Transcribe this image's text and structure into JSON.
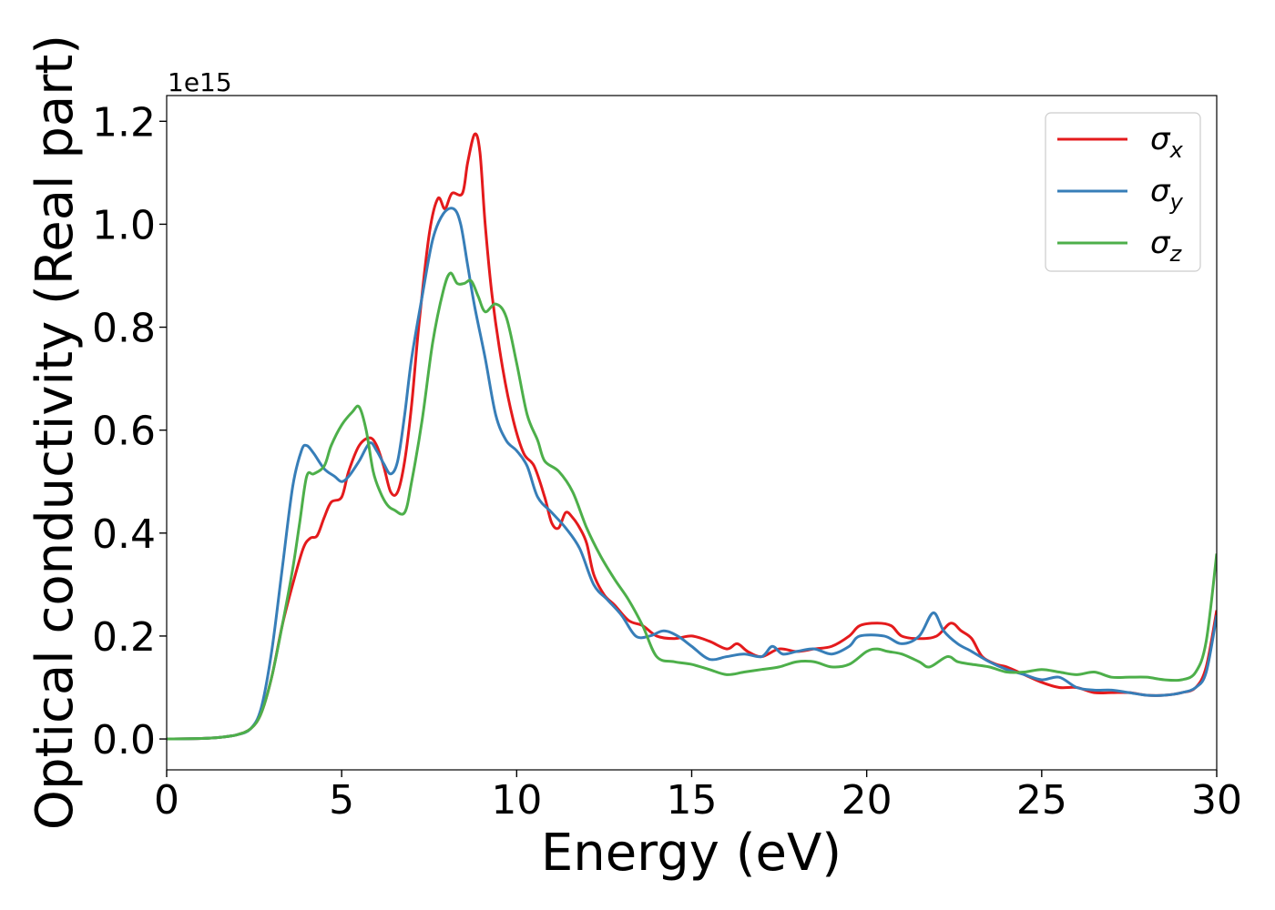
{
  "chart_data": {
    "type": "line",
    "xlabel": "Energy (eV)",
    "ylabel": "Optical conductivity (Real part)",
    "y_offset_label": "1e15",
    "xlim": [
      0,
      30
    ],
    "ylim": [
      -0.06,
      1.25
    ],
    "x_ticks": [
      0,
      5,
      10,
      15,
      20,
      25,
      30
    ],
    "x_tick_labels": [
      "0",
      "5",
      "10",
      "15",
      "20",
      "25",
      "30"
    ],
    "y_ticks": [
      0.0,
      0.2,
      0.4,
      0.6,
      0.8,
      1.0,
      1.2
    ],
    "y_tick_labels": [
      "0.0",
      "0.2",
      "0.4",
      "0.6",
      "0.8",
      "1.0",
      "1.2"
    ],
    "grid": false,
    "legend_position": "top-right",
    "series": [
      {
        "name": "σ",
        "subscript": "x",
        "color": "#e41a1c",
        "points": [
          [
            0,
            0
          ],
          [
            1,
            0.001
          ],
          [
            1.5,
            0.003
          ],
          [
            2,
            0.008
          ],
          [
            2.4,
            0.02
          ],
          [
            2.7,
            0.05
          ],
          [
            3,
            0.12
          ],
          [
            3.3,
            0.22
          ],
          [
            3.6,
            0.3
          ],
          [
            3.9,
            0.37
          ],
          [
            4.1,
            0.39
          ],
          [
            4.3,
            0.395
          ],
          [
            4.5,
            0.43
          ],
          [
            4.7,
            0.46
          ],
          [
            5,
            0.47
          ],
          [
            5.2,
            0.52
          ],
          [
            5.5,
            0.57
          ],
          [
            5.8,
            0.585
          ],
          [
            6,
            0.57
          ],
          [
            6.2,
            0.53
          ],
          [
            6.4,
            0.48
          ],
          [
            6.6,
            0.48
          ],
          [
            6.8,
            0.54
          ],
          [
            7,
            0.65
          ],
          [
            7.2,
            0.8
          ],
          [
            7.5,
            0.98
          ],
          [
            7.75,
            1.05
          ],
          [
            7.95,
            1.03
          ],
          [
            8.15,
            1.06
          ],
          [
            8.45,
            1.06
          ],
          [
            8.6,
            1.12
          ],
          [
            8.8,
            1.175
          ],
          [
            8.95,
            1.14
          ],
          [
            9.1,
            1.0
          ],
          [
            9.3,
            0.86
          ],
          [
            9.6,
            0.72
          ],
          [
            9.9,
            0.62
          ],
          [
            10.2,
            0.555
          ],
          [
            10.5,
            0.53
          ],
          [
            10.8,
            0.47
          ],
          [
            11,
            0.42
          ],
          [
            11.2,
            0.41
          ],
          [
            11.4,
            0.44
          ],
          [
            11.6,
            0.43
          ],
          [
            11.8,
            0.41
          ],
          [
            12,
            0.38
          ],
          [
            12.2,
            0.32
          ],
          [
            12.5,
            0.28
          ],
          [
            12.8,
            0.26
          ],
          [
            13.2,
            0.23
          ],
          [
            13.6,
            0.22
          ],
          [
            14,
            0.2
          ],
          [
            14.5,
            0.195
          ],
          [
            15,
            0.2
          ],
          [
            15.5,
            0.19
          ],
          [
            16,
            0.175
          ],
          [
            16.3,
            0.185
          ],
          [
            16.6,
            0.17
          ],
          [
            17,
            0.16
          ],
          [
            17.5,
            0.175
          ],
          [
            18,
            0.17
          ],
          [
            18.5,
            0.175
          ],
          [
            19,
            0.18
          ],
          [
            19.5,
            0.2
          ],
          [
            19.8,
            0.22
          ],
          [
            20.3,
            0.225
          ],
          [
            20.7,
            0.22
          ],
          [
            21,
            0.2
          ],
          [
            21.5,
            0.195
          ],
          [
            22,
            0.2
          ],
          [
            22.4,
            0.225
          ],
          [
            22.7,
            0.21
          ],
          [
            23,
            0.195
          ],
          [
            23.3,
            0.16
          ],
          [
            23.7,
            0.145
          ],
          [
            24,
            0.14
          ],
          [
            24.5,
            0.125
          ],
          [
            25,
            0.11
          ],
          [
            25.5,
            0.1
          ],
          [
            26,
            0.1
          ],
          [
            26.5,
            0.09
          ],
          [
            27,
            0.09
          ],
          [
            27.5,
            0.09
          ],
          [
            28,
            0.085
          ],
          [
            28.5,
            0.085
          ],
          [
            29,
            0.09
          ],
          [
            29.4,
            0.1
          ],
          [
            29.7,
            0.14
          ],
          [
            30,
            0.25
          ]
        ]
      },
      {
        "name": "σ",
        "subscript": "y",
        "color": "#377eb8",
        "points": [
          [
            0,
            0
          ],
          [
            1,
            0.001
          ],
          [
            1.5,
            0.003
          ],
          [
            2,
            0.008
          ],
          [
            2.4,
            0.02
          ],
          [
            2.7,
            0.06
          ],
          [
            3,
            0.17
          ],
          [
            3.3,
            0.33
          ],
          [
            3.6,
            0.49
          ],
          [
            3.85,
            0.56
          ],
          [
            4,
            0.57
          ],
          [
            4.2,
            0.555
          ],
          [
            4.5,
            0.525
          ],
          [
            4.8,
            0.51
          ],
          [
            5,
            0.5
          ],
          [
            5.2,
            0.51
          ],
          [
            5.5,
            0.54
          ],
          [
            5.8,
            0.575
          ],
          [
            6,
            0.56
          ],
          [
            6.2,
            0.535
          ],
          [
            6.4,
            0.515
          ],
          [
            6.6,
            0.54
          ],
          [
            6.8,
            0.63
          ],
          [
            7,
            0.74
          ],
          [
            7.3,
            0.86
          ],
          [
            7.6,
            0.97
          ],
          [
            7.9,
            1.02
          ],
          [
            8.2,
            1.03
          ],
          [
            8.4,
            1.0
          ],
          [
            8.6,
            0.92
          ],
          [
            8.8,
            0.84
          ],
          [
            9.1,
            0.74
          ],
          [
            9.4,
            0.63
          ],
          [
            9.7,
            0.58
          ],
          [
            10,
            0.56
          ],
          [
            10.3,
            0.53
          ],
          [
            10.6,
            0.47
          ],
          [
            11,
            0.44
          ],
          [
            11.4,
            0.41
          ],
          [
            11.8,
            0.37
          ],
          [
            12.2,
            0.3
          ],
          [
            12.6,
            0.27
          ],
          [
            13,
            0.24
          ],
          [
            13.4,
            0.2
          ],
          [
            13.8,
            0.2
          ],
          [
            14.2,
            0.21
          ],
          [
            14.6,
            0.2
          ],
          [
            15,
            0.18
          ],
          [
            15.5,
            0.155
          ],
          [
            16,
            0.16
          ],
          [
            16.5,
            0.165
          ],
          [
            17,
            0.16
          ],
          [
            17.3,
            0.18
          ],
          [
            17.6,
            0.165
          ],
          [
            18,
            0.17
          ],
          [
            18.5,
            0.175
          ],
          [
            19,
            0.165
          ],
          [
            19.5,
            0.18
          ],
          [
            19.8,
            0.2
          ],
          [
            20.5,
            0.2
          ],
          [
            21,
            0.185
          ],
          [
            21.5,
            0.2
          ],
          [
            21.9,
            0.245
          ],
          [
            22.2,
            0.21
          ],
          [
            22.6,
            0.185
          ],
          [
            23,
            0.17
          ],
          [
            23.5,
            0.15
          ],
          [
            24,
            0.135
          ],
          [
            24.5,
            0.125
          ],
          [
            25,
            0.115
          ],
          [
            25.5,
            0.12
          ],
          [
            26,
            0.1
          ],
          [
            26.5,
            0.095
          ],
          [
            27,
            0.095
          ],
          [
            27.5,
            0.09
          ],
          [
            28,
            0.085
          ],
          [
            28.5,
            0.085
          ],
          [
            29,
            0.09
          ],
          [
            29.4,
            0.1
          ],
          [
            29.7,
            0.13
          ],
          [
            30,
            0.24
          ]
        ]
      },
      {
        "name": "σ",
        "subscript": "z",
        "color": "#4daf4a",
        "points": [
          [
            0,
            0
          ],
          [
            1,
            0.001
          ],
          [
            1.5,
            0.003
          ],
          [
            2,
            0.008
          ],
          [
            2.4,
            0.02
          ],
          [
            2.7,
            0.05
          ],
          [
            3,
            0.12
          ],
          [
            3.3,
            0.22
          ],
          [
            3.6,
            0.33
          ],
          [
            3.8,
            0.42
          ],
          [
            4,
            0.51
          ],
          [
            4.2,
            0.515
          ],
          [
            4.5,
            0.53
          ],
          [
            4.7,
            0.57
          ],
          [
            5,
            0.61
          ],
          [
            5.3,
            0.635
          ],
          [
            5.5,
            0.645
          ],
          [
            5.7,
            0.6
          ],
          [
            5.9,
            0.52
          ],
          [
            6.1,
            0.48
          ],
          [
            6.3,
            0.455
          ],
          [
            6.5,
            0.445
          ],
          [
            6.8,
            0.44
          ],
          [
            7,
            0.5
          ],
          [
            7.3,
            0.62
          ],
          [
            7.6,
            0.77
          ],
          [
            7.9,
            0.87
          ],
          [
            8.1,
            0.905
          ],
          [
            8.3,
            0.885
          ],
          [
            8.5,
            0.885
          ],
          [
            8.7,
            0.89
          ],
          [
            8.9,
            0.86
          ],
          [
            9.1,
            0.83
          ],
          [
            9.4,
            0.845
          ],
          [
            9.7,
            0.82
          ],
          [
            10,
            0.73
          ],
          [
            10.3,
            0.63
          ],
          [
            10.6,
            0.58
          ],
          [
            10.8,
            0.54
          ],
          [
            11.2,
            0.52
          ],
          [
            11.6,
            0.48
          ],
          [
            12,
            0.41
          ],
          [
            12.4,
            0.355
          ],
          [
            12.8,
            0.31
          ],
          [
            13.2,
            0.27
          ],
          [
            13.6,
            0.22
          ],
          [
            14,
            0.16
          ],
          [
            14.5,
            0.15
          ],
          [
            15,
            0.145
          ],
          [
            15.5,
            0.135
          ],
          [
            16,
            0.125
          ],
          [
            16.5,
            0.13
          ],
          [
            17,
            0.135
          ],
          [
            17.5,
            0.14
          ],
          [
            18,
            0.15
          ],
          [
            18.5,
            0.15
          ],
          [
            19,
            0.14
          ],
          [
            19.5,
            0.145
          ],
          [
            20,
            0.17
          ],
          [
            20.3,
            0.175
          ],
          [
            20.6,
            0.17
          ],
          [
            21,
            0.165
          ],
          [
            21.5,
            0.15
          ],
          [
            21.8,
            0.14
          ],
          [
            22.3,
            0.16
          ],
          [
            22.6,
            0.15
          ],
          [
            23,
            0.145
          ],
          [
            23.5,
            0.14
          ],
          [
            24,
            0.13
          ],
          [
            24.5,
            0.13
          ],
          [
            25,
            0.135
          ],
          [
            25.5,
            0.13
          ],
          [
            26,
            0.125
          ],
          [
            26.5,
            0.13
          ],
          [
            27,
            0.12
          ],
          [
            27.5,
            0.12
          ],
          [
            28,
            0.12
          ],
          [
            28.5,
            0.115
          ],
          [
            29,
            0.115
          ],
          [
            29.4,
            0.13
          ],
          [
            29.7,
            0.19
          ],
          [
            30,
            0.36
          ]
        ]
      }
    ]
  }
}
